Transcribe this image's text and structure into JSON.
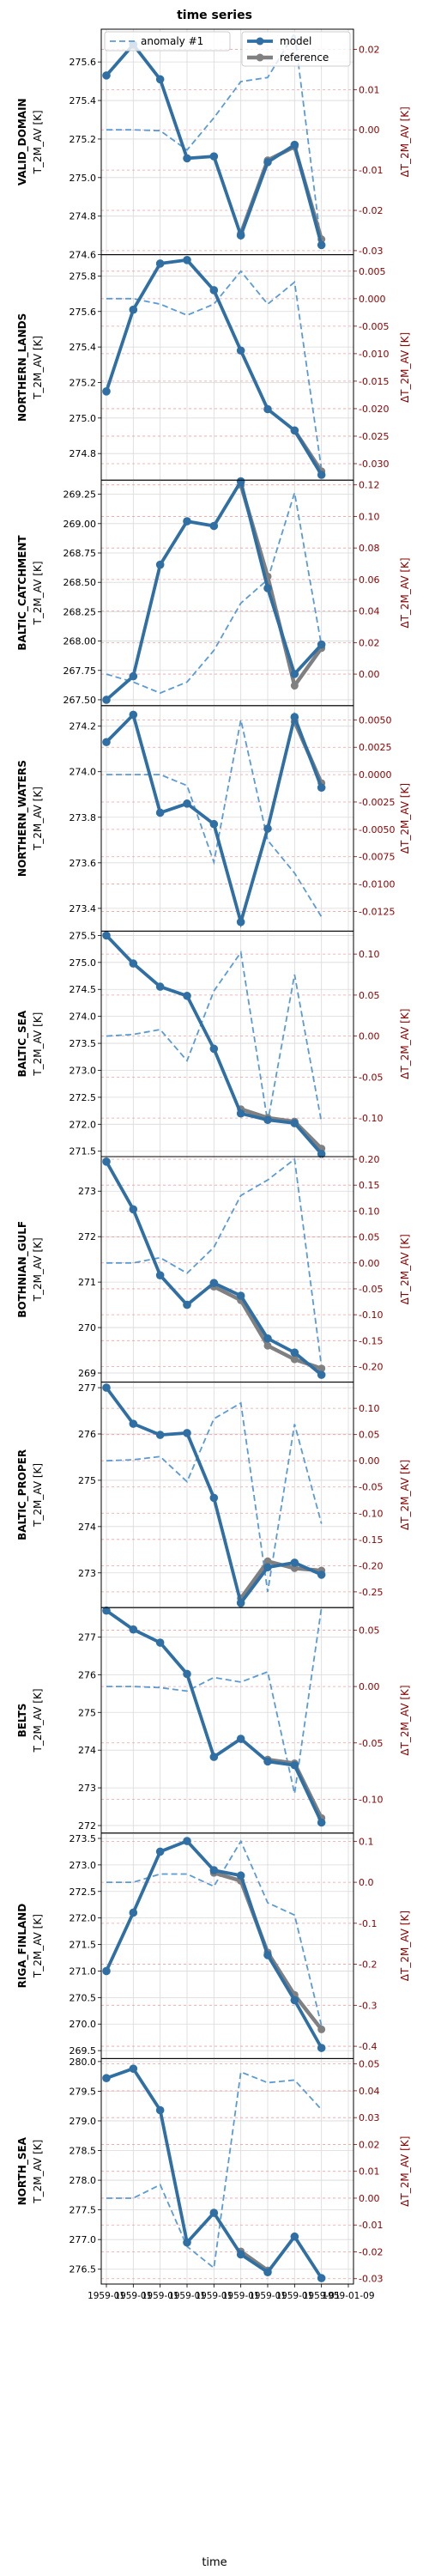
{
  "title": "time series",
  "xlabel": "time",
  "x_ticks": [
    "1959-01",
    "1959-01",
    "1959-01",
    "1959-01",
    "1959-01",
    "1959-01",
    "1959-01",
    "1959-01",
    "1959-01",
    "1959-01-09"
  ],
  "legend": {
    "anomaly": "anomaly #1",
    "model": "model",
    "reference": "reference"
  },
  "colors": {
    "model": "#2f6fa3",
    "reference": "#808080",
    "anomaly": "#5b9bd5",
    "right_axis": "#8b0000",
    "grid": "#d9d9d9",
    "anom_grid": "#f0a0a0"
  },
  "chart_data": [
    {
      "type": "line",
      "region": "VALID_DOMAIN",
      "ylabel": "T_2M_AV [K]",
      "y2label": "ΔT_2M_AV [K]",
      "ylim": [
        274.6,
        275.77
      ],
      "yticks": [
        274.6,
        274.8,
        275.0,
        275.2,
        275.4,
        275.6
      ],
      "y2lim": [
        -0.031,
        0.025
      ],
      "y2ticks": [
        -0.03,
        -0.02,
        -0.01,
        0.0,
        0.01,
        0.02
      ],
      "x": [
        0,
        1,
        2,
        3,
        4,
        5,
        6,
        7,
        8,
        9
      ],
      "series": [
        {
          "name": "model",
          "values": [
            275.53,
            275.69,
            275.51,
            275.1,
            275.11,
            274.7,
            275.08,
            275.17,
            274.65,
            null
          ]
        },
        {
          "name": "reference",
          "values": [
            null,
            null,
            null,
            null,
            null,
            274.71,
            275.09,
            275.16,
            274.68,
            null
          ]
        },
        {
          "name": "anomaly #1",
          "axis": "right",
          "values": [
            0.0,
            0.0,
            -0.0002,
            -0.005,
            0.003,
            0.012,
            0.013,
            0.024,
            -0.029,
            null
          ]
        }
      ]
    },
    {
      "type": "line",
      "region": "NORTHERN_LANDS",
      "ylabel": "T_2M_AV [K]",
      "y2label": "ΔT_2M_AV [K]",
      "ylim": [
        274.65,
        275.92
      ],
      "yticks": [
        274.8,
        275.0,
        275.2,
        275.4,
        275.6,
        275.8
      ],
      "y2lim": [
        -0.033,
        0.008
      ],
      "y2ticks": [
        -0.03,
        -0.025,
        -0.02,
        -0.015,
        -0.01,
        -0.005,
        0.0,
        0.005
      ],
      "x": [
        0,
        1,
        2,
        3,
        4,
        5,
        6,
        7,
        8,
        9
      ],
      "series": [
        {
          "name": "model",
          "values": [
            275.15,
            275.61,
            275.87,
            275.89,
            275.72,
            275.38,
            275.05,
            274.93,
            274.68,
            null
          ]
        },
        {
          "name": "reference",
          "values": [
            null,
            null,
            null,
            null,
            null,
            null,
            null,
            274.93,
            274.7,
            null
          ]
        },
        {
          "name": "anomaly #1",
          "axis": "right",
          "values": [
            0.0,
            0.0,
            -0.001,
            -0.003,
            -0.001,
            0.005,
            -0.001,
            0.003,
            -0.031,
            null
          ]
        }
      ]
    },
    {
      "type": "line",
      "region": "BALTIC_CATCHMENT",
      "ylabel": "T_2M_AV [K]",
      "y2label": "ΔT_2M_AV [K]",
      "ylim": [
        267.45,
        269.37
      ],
      "yticks": [
        267.5,
        267.75,
        268.0,
        268.25,
        268.5,
        268.75,
        269.0,
        269.25
      ],
      "y2lim": [
        -0.02,
        0.123
      ],
      "y2ticks": [
        0.0,
        0.02,
        0.04,
        0.06,
        0.08,
        0.1,
        0.12
      ],
      "x": [
        0,
        1,
        2,
        3,
        4,
        5,
        6,
        7,
        8,
        9
      ],
      "series": [
        {
          "name": "model",
          "values": [
            267.5,
            267.7,
            268.65,
            269.02,
            268.98,
            269.36,
            268.45,
            267.72,
            267.97,
            null
          ]
        },
        {
          "name": "reference",
          "values": [
            null,
            null,
            null,
            null,
            null,
            269.33,
            268.55,
            267.62,
            267.94,
            null
          ]
        },
        {
          "name": "anomaly #1",
          "axis": "right",
          "values": [
            0.0,
            -0.005,
            -0.012,
            -0.005,
            0.015,
            0.045,
            0.06,
            0.115,
            0.018,
            null
          ]
        }
      ]
    },
    {
      "type": "line",
      "region": "NORTHERN_WATERS",
      "ylabel": "T_2M_AV [K]",
      "y2label": "ΔT_2M_AV [K]",
      "ylim": [
        273.3,
        274.29
      ],
      "yticks": [
        273.4,
        273.6,
        273.8,
        274.0,
        274.2
      ],
      "y2lim": [
        -0.0143,
        0.0063
      ],
      "y2ticks": [
        -0.0125,
        -0.01,
        -0.0075,
        -0.005,
        -0.0025,
        0.0,
        0.0025,
        0.005
      ],
      "x": [
        0,
        1,
        2,
        3,
        4,
        5,
        6,
        7,
        8,
        9
      ],
      "series": [
        {
          "name": "model",
          "values": [
            274.13,
            274.25,
            273.82,
            273.86,
            273.77,
            273.34,
            273.75,
            274.24,
            273.93,
            null
          ]
        },
        {
          "name": "reference",
          "values": [
            null,
            null,
            null,
            null,
            null,
            null,
            null,
            274.22,
            273.95,
            null
          ]
        },
        {
          "name": "anomaly #1",
          "axis": "right",
          "values": [
            0.0,
            0.0,
            0.0,
            -0.001,
            -0.008,
            0.005,
            -0.006,
            -0.009,
            -0.013,
            null
          ]
        }
      ]
    },
    {
      "type": "line",
      "region": "BALTIC_SEA",
      "ylabel": "T_2M_AV [K]",
      "y2label": "ΔT_2M_AV [K]",
      "ylim": [
        271.4,
        275.58
      ],
      "yticks": [
        271.5,
        272.0,
        272.5,
        273.0,
        273.5,
        274.0,
        274.5,
        275.0,
        275.5
      ],
      "y2lim": [
        -0.147,
        0.128
      ],
      "y2ticks": [
        -0.1,
        -0.05,
        0.0,
        0.05,
        0.1
      ],
      "x": [
        0,
        1,
        2,
        3,
        4,
        5,
        6,
        7,
        8,
        9
      ],
      "series": [
        {
          "name": "model",
          "values": [
            275.5,
            274.98,
            274.55,
            274.38,
            273.4,
            272.2,
            272.08,
            272.02,
            271.45,
            null
          ]
        },
        {
          "name": "reference",
          "values": [
            null,
            null,
            null,
            null,
            null,
            272.28,
            272.12,
            272.05,
            271.55,
            null
          ]
        },
        {
          "name": "anomaly #1",
          "axis": "right",
          "values": [
            0.0,
            0.002,
            0.008,
            -0.03,
            0.055,
            0.102,
            -0.105,
            0.075,
            -0.105,
            null
          ]
        }
      ]
    },
    {
      "type": "line",
      "region": "BOTHNIAN_GULF",
      "ylabel": "T_2M_AV [K]",
      "y2label": "ΔT_2M_AV [K]",
      "ylim": [
        268.8,
        273.76
      ],
      "yticks": [
        269,
        270,
        271,
        272,
        273
      ],
      "y2lim": [
        -0.23,
        0.205
      ],
      "y2ticks": [
        -0.2,
        -0.15,
        -0.1,
        -0.05,
        0.0,
        0.05,
        0.1,
        0.15,
        0.2
      ],
      "x": [
        0,
        1,
        2,
        3,
        4,
        5,
        6,
        7,
        8,
        9
      ],
      "series": [
        {
          "name": "model",
          "values": [
            273.65,
            272.6,
            271.15,
            270.5,
            270.98,
            270.7,
            269.76,
            269.45,
            268.96,
            null
          ]
        },
        {
          "name": "reference",
          "values": [
            null,
            null,
            null,
            null,
            270.9,
            270.6,
            269.6,
            269.3,
            269.1,
            null
          ]
        },
        {
          "name": "anomaly #1",
          "axis": "right",
          "values": [
            0.0,
            0.0,
            0.01,
            -0.02,
            0.03,
            0.13,
            0.16,
            0.2,
            -0.2,
            null
          ]
        }
      ]
    },
    {
      "type": "line",
      "region": "BALTIC_PROPER",
      "ylabel": "T_2M_AV [K]",
      "y2label": "ΔT_2M_AV [K]",
      "ylim": [
        272.25,
        277.12
      ],
      "yticks": [
        273,
        274,
        275,
        276,
        277
      ],
      "y2lim": [
        -0.28,
        0.15
      ],
      "y2ticks": [
        -0.25,
        -0.2,
        -0.15,
        -0.1,
        -0.05,
        0.0,
        0.05,
        0.1
      ],
      "x": [
        0,
        1,
        2,
        3,
        4,
        5,
        6,
        7,
        8,
        9
      ],
      "series": [
        {
          "name": "model",
          "values": [
            277.0,
            276.22,
            275.98,
            276.02,
            274.62,
            272.35,
            273.12,
            273.22,
            272.96,
            null
          ]
        },
        {
          "name": "reference",
          "values": [
            null,
            null,
            null,
            null,
            null,
            272.45,
            273.25,
            273.1,
            273.05,
            null
          ]
        },
        {
          "name": "anomaly #1",
          "axis": "right",
          "values": [
            0.0,
            0.002,
            0.008,
            -0.04,
            0.08,
            0.11,
            -0.25,
            0.07,
            -0.12,
            null
          ]
        }
      ]
    },
    {
      "type": "line",
      "region": "BELTS",
      "ylabel": "T_2M_AV [K]",
      "y2label": "ΔT_2M_AV [K]",
      "ylim": [
        271.8,
        277.78
      ],
      "yticks": [
        272,
        273,
        274,
        275,
        276,
        277
      ],
      "y2lim": [
        -0.13,
        0.07
      ],
      "y2ticks": [
        -0.1,
        -0.05,
        0.0,
        0.05
      ],
      "x": [
        0,
        1,
        2,
        3,
        4,
        5,
        6,
        7,
        8,
        9
      ],
      "series": [
        {
          "name": "model",
          "values": [
            277.7,
            277.2,
            276.85,
            276.02,
            273.82,
            274.3,
            273.7,
            273.6,
            272.08,
            null
          ]
        },
        {
          "name": "reference",
          "values": [
            null,
            null,
            null,
            null,
            null,
            null,
            273.75,
            273.65,
            272.2,
            null
          ]
        },
        {
          "name": "anomaly #1",
          "axis": "right",
          "values": [
            0.0,
            0.0,
            -0.001,
            -0.004,
            0.008,
            0.004,
            0.013,
            -0.095,
            0.07,
            null
          ]
        }
      ]
    },
    {
      "type": "line",
      "region": "RIGA_FINLAND",
      "ylabel": "T_2M_AV [K]",
      "y2label": "ΔT_2M_AV [K]",
      "ylim": [
        269.35,
        273.6
      ],
      "yticks": [
        269.5,
        270.0,
        270.5,
        271.0,
        271.5,
        272.0,
        272.5,
        273.0,
        273.5
      ],
      "y2lim": [
        -0.43,
        0.12
      ],
      "y2ticks": [
        -0.4,
        -0.3,
        -0.2,
        -0.1,
        0.0,
        0.1
      ],
      "x": [
        0,
        1,
        2,
        3,
        4,
        5,
        6,
        7,
        8,
        9
      ],
      "series": [
        {
          "name": "model",
          "values": [
            271.0,
            272.1,
            273.25,
            273.45,
            272.9,
            272.8,
            271.3,
            270.45,
            269.55,
            null
          ]
        },
        {
          "name": "reference",
          "values": [
            null,
            null,
            null,
            null,
            272.85,
            272.7,
            271.35,
            270.55,
            269.9,
            null
          ]
        },
        {
          "name": "anomaly #1",
          "axis": "right",
          "values": [
            0.0,
            0.0,
            0.02,
            0.02,
            -0.01,
            0.1,
            -0.05,
            -0.08,
            -0.35,
            null
          ]
        }
      ]
    },
    {
      "type": "line",
      "region": "NORTH_SEA",
      "ylabel": "T_2M_AV [K]",
      "y2label": "ΔT_2M_AV [K]",
      "ylim": [
        276.25,
        280.05
      ],
      "yticks": [
        276.5,
        277.0,
        277.5,
        278.0,
        278.5,
        279.0,
        279.5,
        280.0
      ],
      "y2lim": [
        -0.032,
        0.052
      ],
      "y2ticks": [
        -0.03,
        -0.02,
        -0.01,
        0.0,
        0.01,
        0.02,
        0.03,
        0.04,
        0.05
      ],
      "x": [
        0,
        1,
        2,
        3,
        4,
        5,
        6,
        7,
        8,
        9
      ],
      "series": [
        {
          "name": "model",
          "values": [
            279.72,
            279.88,
            279.18,
            276.95,
            277.45,
            276.75,
            276.45,
            277.05,
            276.35,
            null
          ]
        },
        {
          "name": "reference",
          "values": [
            null,
            null,
            null,
            null,
            null,
            276.8,
            276.48,
            null,
            null,
            null
          ]
        },
        {
          "name": "anomaly #1",
          "axis": "right",
          "values": [
            0.0,
            0.0,
            0.005,
            -0.018,
            -0.026,
            0.047,
            0.043,
            0.044,
            0.033,
            null
          ]
        }
      ]
    }
  ]
}
